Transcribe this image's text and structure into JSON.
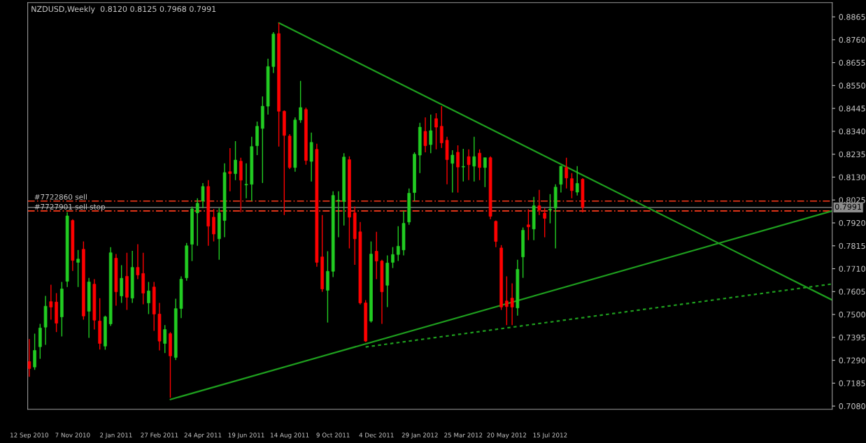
{
  "chart_data": {
    "type": "candlestick",
    "title": "NZDUSD,Weekly  0.8120 0.8125 0.7968 0.7991",
    "x": [
      "2010-09-12",
      "2010-09-19",
      "2010-09-26",
      "2010-10-03",
      "2010-10-10",
      "2010-10-17",
      "2010-10-24",
      "2010-10-31",
      "2010-11-07",
      "2010-11-14",
      "2010-11-21",
      "2010-11-28",
      "2010-12-05",
      "2010-12-12",
      "2010-12-19",
      "2010-12-26",
      "2011-01-02",
      "2011-01-09",
      "2011-01-16",
      "2011-01-23",
      "2011-01-30",
      "2011-02-06",
      "2011-02-13",
      "2011-02-20",
      "2011-02-27",
      "2011-03-06",
      "2011-03-13",
      "2011-03-20",
      "2011-03-27",
      "2011-04-03",
      "2011-04-10",
      "2011-04-17",
      "2011-04-24",
      "2011-05-01",
      "2011-05-08",
      "2011-05-15",
      "2011-05-22",
      "2011-05-29",
      "2011-06-05",
      "2011-06-12",
      "2011-06-19",
      "2011-06-26",
      "2011-07-03",
      "2011-07-10",
      "2011-07-17",
      "2011-07-24",
      "2011-07-31",
      "2011-08-07",
      "2011-08-14",
      "2011-08-21",
      "2011-08-28",
      "2011-09-04",
      "2011-09-11",
      "2011-09-18",
      "2011-09-25",
      "2011-10-02",
      "2011-10-09",
      "2011-10-16",
      "2011-10-23",
      "2011-10-30",
      "2011-11-06",
      "2011-11-13",
      "2011-11-20",
      "2011-11-27",
      "2011-12-04",
      "2011-12-11",
      "2011-12-18",
      "2011-12-25",
      "2012-01-01",
      "2012-01-08",
      "2012-01-15",
      "2012-01-22",
      "2012-01-29",
      "2012-02-05",
      "2012-02-12",
      "2012-02-19",
      "2012-02-26",
      "2012-03-04",
      "2012-03-11",
      "2012-03-18",
      "2012-03-25",
      "2012-04-01",
      "2012-04-08",
      "2012-04-15",
      "2012-04-22",
      "2012-04-29",
      "2012-05-06",
      "2012-05-13",
      "2012-05-20",
      "2012-05-27",
      "2012-06-03",
      "2012-06-10",
      "2012-06-17",
      "2012-06-24",
      "2012-07-01",
      "2012-07-08",
      "2012-07-15",
      "2012-07-22",
      "2012-07-29",
      "2012-08-05",
      "2012-08-12",
      "2012-08-19",
      "2012-08-26"
    ],
    "ohlc": [
      [
        0.7284,
        0.7387,
        0.7214,
        0.7252
      ],
      [
        0.7259,
        0.7412,
        0.7246,
        0.7335
      ],
      [
        0.7352,
        0.7457,
        0.7297,
        0.7438
      ],
      [
        0.7442,
        0.7585,
        0.7361,
        0.7538
      ],
      [
        0.7559,
        0.7636,
        0.7476,
        0.7534
      ],
      [
        0.7557,
        0.7598,
        0.7419,
        0.746
      ],
      [
        0.7489,
        0.7649,
        0.7399,
        0.7617
      ],
      [
        0.7652,
        0.7969,
        0.7626,
        0.7952
      ],
      [
        0.7931,
        0.7937,
        0.77,
        0.7748
      ],
      [
        0.7739,
        0.7796,
        0.7626,
        0.7754
      ],
      [
        0.7799,
        0.7835,
        0.7476,
        0.7493
      ],
      [
        0.7515,
        0.7668,
        0.7393,
        0.7649
      ],
      [
        0.7639,
        0.7662,
        0.7431,
        0.7474
      ],
      [
        0.747,
        0.7575,
        0.7339,
        0.7367
      ],
      [
        0.7355,
        0.7495,
        0.7338,
        0.7489
      ],
      [
        0.7457,
        0.7809,
        0.7447,
        0.7783
      ],
      [
        0.7758,
        0.7777,
        0.754,
        0.7604
      ],
      [
        0.7585,
        0.7726,
        0.7553,
        0.7666
      ],
      [
        0.7675,
        0.7783,
        0.7521,
        0.7579
      ],
      [
        0.7575,
        0.7792,
        0.7553,
        0.7716
      ],
      [
        0.7716,
        0.7822,
        0.7662,
        0.7681
      ],
      [
        0.7688,
        0.7783,
        0.7547,
        0.7598
      ],
      [
        0.7553,
        0.7649,
        0.7502,
        0.7608
      ],
      [
        0.7626,
        0.7649,
        0.7425,
        0.7502
      ],
      [
        0.7502,
        0.7553,
        0.7335,
        0.7378
      ],
      [
        0.7367,
        0.7451,
        0.7323,
        0.7431
      ],
      [
        0.7412,
        0.7419,
        0.7118,
        0.731
      ],
      [
        0.7303,
        0.7572,
        0.7291,
        0.7527
      ],
      [
        0.7527,
        0.7675,
        0.7483,
        0.7662
      ],
      [
        0.7668,
        0.7828,
        0.7655,
        0.7815
      ],
      [
        0.7822,
        0.7995,
        0.7745,
        0.7984
      ],
      [
        0.7966,
        0.8033,
        0.7815,
        0.801
      ],
      [
        0.802,
        0.8103,
        0.7988,
        0.8087
      ],
      [
        0.8087,
        0.8116,
        0.7815,
        0.7905
      ],
      [
        0.7946,
        0.7984,
        0.7835,
        0.7869
      ],
      [
        0.7847,
        0.7988,
        0.7751,
        0.7966
      ],
      [
        0.7931,
        0.8193,
        0.7854,
        0.8151
      ],
      [
        0.8155,
        0.8263,
        0.8065,
        0.8146
      ],
      [
        0.8146,
        0.8295,
        0.8116,
        0.8208
      ],
      [
        0.8203,
        0.8219,
        0.7969,
        0.8116
      ],
      [
        0.8094,
        0.8193,
        0.8033,
        0.8097
      ],
      [
        0.8097,
        0.8315,
        0.802,
        0.827
      ],
      [
        0.8274,
        0.8385,
        0.8231,
        0.8363
      ],
      [
        0.8353,
        0.85,
        0.8103,
        0.8455
      ],
      [
        0.8455,
        0.8673,
        0.8417,
        0.8637
      ],
      [
        0.8637,
        0.8795,
        0.8607,
        0.8786
      ],
      [
        0.8788,
        0.8837,
        0.827,
        0.8432
      ],
      [
        0.8432,
        0.8436,
        0.7956,
        0.8321
      ],
      [
        0.8318,
        0.8327,
        0.8167,
        0.8174
      ],
      [
        0.8174,
        0.8404,
        0.8155,
        0.8392
      ],
      [
        0.8392,
        0.8571,
        0.8379,
        0.8449
      ],
      [
        0.844,
        0.8449,
        0.8187,
        0.8206
      ],
      [
        0.8202,
        0.8334,
        0.811,
        0.8289
      ],
      [
        0.8257,
        0.8283,
        0.7719,
        0.7739
      ],
      [
        0.7764,
        0.7956,
        0.7604,
        0.7617
      ],
      [
        0.7611,
        0.779,
        0.7463,
        0.7698
      ],
      [
        0.7698,
        0.8065,
        0.7672,
        0.8046
      ],
      [
        0.802,
        0.8065,
        0.7854,
        0.8024
      ],
      [
        0.8018,
        0.824,
        0.7908,
        0.8222
      ],
      [
        0.821,
        0.8225,
        0.7803,
        0.7946
      ],
      [
        0.7966,
        0.7995,
        0.7728,
        0.7847
      ],
      [
        0.7879,
        0.7924,
        0.7546,
        0.7553
      ],
      [
        0.7553,
        0.7566,
        0.7374,
        0.7378
      ],
      [
        0.747,
        0.7835,
        0.7463,
        0.7777
      ],
      [
        0.779,
        0.7879,
        0.7662,
        0.7745
      ],
      [
        0.7745,
        0.7751,
        0.7457,
        0.7604
      ],
      [
        0.7634,
        0.7771,
        0.7534,
        0.7736
      ],
      [
        0.7739,
        0.7809,
        0.7713,
        0.7775
      ],
      [
        0.7775,
        0.7905,
        0.7745,
        0.7813
      ],
      [
        0.7796,
        0.7975,
        0.7771,
        0.7918
      ],
      [
        0.7924,
        0.8078,
        0.7911,
        0.8056
      ],
      [
        0.8059,
        0.8244,
        0.802,
        0.8235
      ],
      [
        0.8231,
        0.8379,
        0.8148,
        0.8359
      ],
      [
        0.834,
        0.8404,
        0.8244,
        0.8274
      ],
      [
        0.8279,
        0.8417,
        0.824,
        0.8343
      ],
      [
        0.8398,
        0.8423,
        0.8257,
        0.8359
      ],
      [
        0.8363,
        0.8455,
        0.8264,
        0.8287
      ],
      [
        0.8299,
        0.8315,
        0.8097,
        0.821
      ],
      [
        0.8193,
        0.8253,
        0.8059,
        0.8231
      ],
      [
        0.8244,
        0.8276,
        0.8059,
        0.8176
      ],
      [
        0.8176,
        0.826,
        0.811,
        0.8179
      ],
      [
        0.8224,
        0.8257,
        0.8116,
        0.8187
      ],
      [
        0.818,
        0.8315,
        0.811,
        0.8224
      ],
      [
        0.824,
        0.8257,
        0.8116,
        0.8174
      ],
      [
        0.8174,
        0.8219,
        0.8084,
        0.8219
      ],
      [
        0.8219,
        0.8225,
        0.7937,
        0.795
      ],
      [
        0.7927,
        0.7931,
        0.7809,
        0.7835
      ],
      [
        0.7805,
        0.7818,
        0.7521,
        0.7534
      ],
      [
        0.7562,
        0.7675,
        0.7451,
        0.7536
      ],
      [
        0.7575,
        0.7643,
        0.7451,
        0.7534
      ],
      [
        0.753,
        0.7751,
        0.7495,
        0.7707
      ],
      [
        0.7764,
        0.7899,
        0.7668,
        0.7886
      ],
      [
        0.7911,
        0.7982,
        0.7841,
        0.7902
      ],
      [
        0.7892,
        0.8039,
        0.7841,
        0.7999
      ],
      [
        0.7999,
        0.8071,
        0.7956,
        0.7979
      ],
      [
        0.7965,
        0.7988,
        0.7854,
        0.7941
      ],
      [
        0.7979,
        0.8052,
        0.7918,
        0.7983
      ],
      [
        0.7988,
        0.8097,
        0.7803,
        0.8084
      ],
      [
        0.8097,
        0.818,
        0.8059,
        0.818
      ],
      [
        0.8174,
        0.8219,
        0.8078,
        0.8126
      ],
      [
        0.8123,
        0.8148,
        0.8033,
        0.8068
      ],
      [
        0.8061,
        0.818,
        0.8046,
        0.8101
      ],
      [
        0.812,
        0.8125,
        0.7968,
        0.7991
      ]
    ],
    "colors": [
      "#ff0000",
      "#22cc22",
      "#22cc22",
      "#22cc22",
      "#ff0000",
      "#ff0000",
      "#22cc22",
      "#22cc22",
      "#ff0000",
      "#22cc22",
      "#ff0000",
      "#22cc22",
      "#ff0000",
      "#ff0000",
      "#22cc22",
      "#22cc22",
      "#ff0000",
      "#22cc22",
      "#ff0000",
      "#22cc22",
      "#ff0000",
      "#ff0000",
      "#22cc22",
      "#ff0000",
      "#ff0000",
      "#22cc22",
      "#ff0000",
      "#22cc22",
      "#22cc22",
      "#22cc22",
      "#22cc22",
      "#22cc22",
      "#22cc22",
      "#ff0000",
      "#ff0000",
      "#22cc22",
      "#22cc22",
      "#ff0000",
      "#22cc22",
      "#ff0000",
      "#22cc22",
      "#22cc22",
      "#22cc22",
      "#22cc22",
      "#22cc22",
      "#22cc22",
      "#ff0000",
      "#ff0000",
      "#ff0000",
      "#22cc22",
      "#22cc22",
      "#ff0000",
      "#22cc22",
      "#ff0000",
      "#ff0000",
      "#22cc22",
      "#22cc22",
      "#22cc22",
      "#22cc22",
      "#ff0000",
      "#ff0000",
      "#ff0000",
      "#ff0000",
      "#22cc22",
      "#ff0000",
      "#ff0000",
      "#22cc22",
      "#22cc22",
      "#22cc22",
      "#22cc22",
      "#22cc22",
      "#22cc22",
      "#22cc22",
      "#ff0000",
      "#22cc22",
      "#ff0000",
      "#ff0000",
      "#ff0000",
      "#22cc22",
      "#ff0000",
      "#22cc22",
      "#ff0000",
      "#22cc22",
      "#ff0000",
      "#22cc22",
      "#ff0000",
      "#ff0000",
      "#ff0000",
      "#ff0000",
      "#ff0000",
      "#22cc22",
      "#22cc22",
      "#ff0000",
      "#22cc22",
      "#ff0000",
      "#ff0000",
      "#22cc22",
      "#22cc22",
      "#22cc22",
      "#ff0000",
      "#ff0000",
      "#22cc22",
      "#ff0000"
    ],
    "series": [
      {
        "type": "line",
        "x": [
          "2011-07-31",
          "2013-07-14"
        ],
        "values": [
          0.8837,
          0.7566
        ],
        "color": "#1e9e1e",
        "line_style": "solid"
      },
      {
        "type": "line",
        "x": [
          "2011-03-13",
          "2013-07-14"
        ],
        "values": [
          0.711,
          0.7975
        ],
        "color": "#1e9e1e",
        "line_style": "solid"
      },
      {
        "type": "line",
        "x": [
          "2011-11-20",
          "2013-07-14"
        ],
        "values": [
          0.7351,
          0.764
        ],
        "color": "#1e9e1e",
        "line_style": "dashed"
      }
    ],
    "ref_lines": [
      {
        "axis": "y",
        "value": 0.802,
        "label": "#7722860 sell",
        "color": "#ff3a1a",
        "line_style": "dashed"
      },
      {
        "axis": "y",
        "value": 0.7975,
        "label": "#7727901 sell stop",
        "color": "#ff3a1a",
        "line_style": "dashed"
      },
      {
        "axis": "y",
        "value": 0.7991,
        "label": "0.7991",
        "color": "#8c8c8c",
        "line_style": "solid"
      }
    ],
    "xlim": [
      "2010-09-10",
      "2013-07-14"
    ],
    "xticks": [
      {
        "value": "2010-09-12",
        "label": "12 Sep 2010"
      },
      {
        "value": "2010-11-07",
        "label": "7 Nov 2010"
      },
      {
        "value": "2011-01-02",
        "label": "2 Jan 2011"
      },
      {
        "value": "2011-02-27",
        "label": "27 Feb 2011"
      },
      {
        "value": "2011-04-24",
        "label": "24 Apr 2011"
      },
      {
        "value": "2011-06-19",
        "label": "19 Jun 2011"
      },
      {
        "value": "2011-08-14",
        "label": "14 Aug 2011"
      },
      {
        "value": "2011-10-09",
        "label": "9 Oct 2011"
      },
      {
        "value": "2011-12-04",
        "label": "4 Dec 2011"
      },
      {
        "value": "2012-01-29",
        "label": "29 Jan 2012"
      },
      {
        "value": "2012-03-25",
        "label": "25 Mar 2012"
      },
      {
        "value": "2012-05-20",
        "label": "20 May 2012"
      },
      {
        "value": "2012-07-15",
        "label": "15 Jul 2012"
      }
    ],
    "ylim": [
      0.7065,
      0.893
    ],
    "yticks": [
      {
        "value": 0.708,
        "label": "0.7080"
      },
      0.7185,
      {
        "value": 0.729,
        "label": "0.7290"
      },
      0.7395,
      {
        "value": 0.75,
        "label": "0.7500"
      },
      0.7605,
      {
        "value": 0.771,
        "label": "0.7710"
      },
      0.7815,
      {
        "value": 0.792,
        "label": "0.7920"
      },
      0.8025,
      {
        "value": 0.813,
        "label": "0.8130"
      },
      0.8235,
      {
        "value": 0.834,
        "label": "0.8340"
      },
      0.8445,
      {
        "value": 0.855,
        "label": "0.8550"
      },
      0.8655,
      {
        "value": 0.876,
        "label": "0.8760"
      },
      0.8865
    ],
    "grid": false,
    "legend": false
  }
}
